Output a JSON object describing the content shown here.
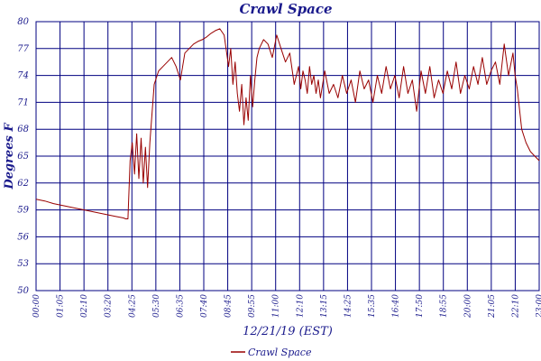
{
  "chart_data": {
    "type": "line",
    "title": "Crawl Space",
    "xlabel": "12/21/19 (EST)",
    "ylabel": "Degrees F",
    "ylim": [
      50,
      80
    ],
    "yticks": [
      "80",
      "77",
      "74",
      "71",
      "68",
      "65",
      "62",
      "59",
      "56",
      "53",
      "50"
    ],
    "xticks": [
      "00:00",
      "01:05",
      "02:10",
      "03:20",
      "04:25",
      "05:30",
      "06:35",
      "07:40",
      "08:45",
      "09:55",
      "11:00",
      "12:10",
      "13:15",
      "14:25",
      "15:35",
      "16:40",
      "17:50",
      "18:55",
      "20:00",
      "21:05",
      "22:10",
      "23:00"
    ],
    "xlim": [
      0,
      23.0
    ],
    "grid": true,
    "legend_position": "bottom-center",
    "colors": {
      "line": "#990000",
      "grid": "#000080",
      "text": "#1a1a8c"
    },
    "series": [
      {
        "name": "Crawl Space",
        "x": [
          0,
          0.4,
          0.8,
          1.2,
          1.6,
          2.0,
          2.4,
          2.8,
          3.2,
          3.6,
          4.0,
          4.1,
          4.2,
          4.3,
          4.4,
          4.5,
          4.6,
          4.7,
          4.8,
          4.9,
          5.0,
          5.1,
          5.2,
          5.4,
          5.6,
          5.8,
          6.0,
          6.2,
          6.4,
          6.6,
          6.8,
          7.0,
          7.2,
          7.4,
          7.6,
          7.8,
          8.0,
          8.2,
          8.4,
          8.6,
          8.8,
          8.9,
          9.0,
          9.1,
          9.2,
          9.3,
          9.4,
          9.5,
          9.6,
          9.7,
          9.8,
          9.9,
          10.0,
          10.1,
          10.2,
          10.4,
          10.6,
          10.8,
          11.0,
          11.2,
          11.4,
          11.6,
          11.8,
          12.0,
          12.1,
          12.2,
          12.3,
          12.4,
          12.5,
          12.6,
          12.7,
          12.8,
          12.9,
          13.0,
          13.2,
          13.4,
          13.6,
          13.8,
          14.0,
          14.2,
          14.4,
          14.6,
          14.8,
          15.0,
          15.2,
          15.4,
          15.6,
          15.8,
          16.0,
          16.2,
          16.4,
          16.6,
          16.8,
          17.0,
          17.2,
          17.4,
          17.6,
          17.8,
          18.0,
          18.2,
          18.4,
          18.6,
          18.8,
          19.0,
          19.2,
          19.4,
          19.6,
          19.8,
          20.0,
          20.2,
          20.4,
          20.6,
          20.8,
          21.0,
          21.2,
          21.4,
          21.6,
          21.8,
          21.9,
          22.0,
          22.2,
          22.4,
          22.6,
          22.8,
          23.0
        ],
        "y": [
          60.2,
          60.0,
          59.7,
          59.5,
          59.3,
          59.1,
          58.9,
          58.7,
          58.5,
          58.3,
          58.1,
          58.0,
          58.0,
          64.5,
          66.5,
          63.0,
          67.5,
          62.5,
          67.0,
          62.0,
          66.0,
          61.5,
          66.5,
          73.0,
          74.5,
          75.0,
          75.5,
          76.0,
          75.0,
          73.5,
          76.5,
          77.0,
          77.5,
          77.8,
          78.0,
          78.3,
          78.7,
          79.0,
          79.2,
          78.5,
          75.0,
          77.0,
          73.0,
          75.5,
          72.0,
          70.0,
          73.0,
          68.5,
          71.5,
          69.0,
          74.0,
          70.5,
          73.5,
          76.0,
          77.0,
          78.0,
          77.5,
          76.0,
          78.5,
          77.0,
          75.5,
          76.5,
          73.0,
          75.0,
          72.5,
          74.5,
          73.5,
          72.0,
          75.0,
          73.0,
          74.0,
          72.0,
          73.5,
          71.5,
          74.5,
          72.0,
          73.0,
          71.5,
          74.0,
          72.0,
          73.5,
          71.0,
          74.5,
          72.5,
          73.5,
          71.0,
          74.0,
          72.0,
          75.0,
          72.5,
          74.0,
          71.5,
          75.0,
          72.0,
          73.5,
          70.0,
          74.5,
          72.0,
          75.0,
          71.5,
          73.5,
          72.0,
          74.5,
          72.5,
          75.5,
          72.0,
          74.0,
          72.5,
          75.0,
          73.0,
          76.0,
          73.0,
          74.5,
          75.5,
          73.0,
          77.5,
          74.0,
          76.5,
          74.0,
          72.5,
          68.0,
          66.5,
          65.5,
          65.0,
          64.5
        ]
      }
    ]
  }
}
